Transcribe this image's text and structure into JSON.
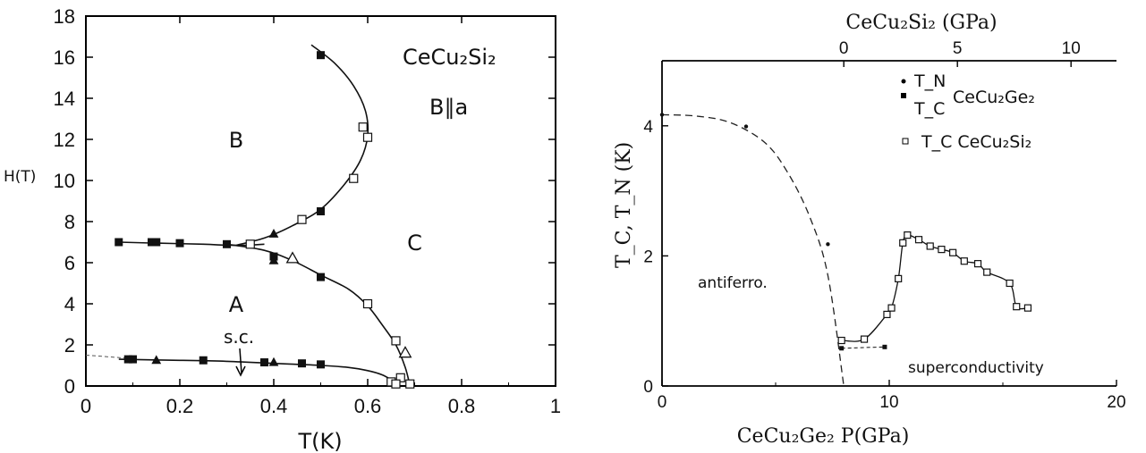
{
  "chart_data": [
    {
      "type": "scatter",
      "title": "CeCu₂Si₂",
      "subtitle": "B∥a",
      "xlabel": "T(K)",
      "ylabel": "H(T)",
      "xlim": [
        0,
        1
      ],
      "ylim": [
        0,
        18
      ],
      "xticks": [
        0,
        0.2,
        0.4,
        0.6,
        0.8,
        1
      ],
      "xtick_labels": [
        "0",
        "0.2",
        "0.4",
        "0.6",
        "0.8",
        "1"
      ],
      "yticks": [
        0,
        2,
        4,
        6,
        8,
        10,
        12,
        14,
        16,
        18
      ],
      "ytick_labels": [
        "0",
        "2",
        "4",
        "6",
        "8",
        "10",
        "12",
        "14",
        "16",
        "18"
      ],
      "region_labels": [
        {
          "text": "A",
          "x": 0.32,
          "y": 4.0
        },
        {
          "text": "B",
          "x": 0.32,
          "y": 12.0
        },
        {
          "text": "C",
          "x": 0.7,
          "y": 7.0
        }
      ],
      "annotation": {
        "text": "s.c.",
        "x": 0.34,
        "y": 2.0
      },
      "curves": [
        {
          "name": "A-B boundary",
          "x": [
            0.07,
            0.15,
            0.25,
            0.3,
            0.34,
            0.38
          ],
          "y": [
            7.0,
            6.95,
            6.9,
            6.85,
            6.85,
            6.9
          ]
        },
        {
          "name": "B-C boundary",
          "x": [
            0.32,
            0.38,
            0.44,
            0.5,
            0.55,
            0.585,
            0.6,
            0.595,
            0.57,
            0.53,
            0.48
          ],
          "y": [
            6.85,
            7.2,
            7.8,
            8.6,
            9.8,
            11.0,
            12.2,
            13.4,
            14.6,
            15.7,
            16.6
          ]
        },
        {
          "name": "A-C boundary",
          "x": [
            0.3,
            0.38,
            0.44,
            0.5,
            0.56,
            0.6,
            0.63,
            0.66,
            0.68,
            0.69
          ],
          "y": [
            6.9,
            6.6,
            6.1,
            5.4,
            4.7,
            3.9,
            3.0,
            2.0,
            0.9,
            0.0
          ]
        },
        {
          "name": "superconducting boundary",
          "x": [
            0.07,
            0.2,
            0.3,
            0.4,
            0.5,
            0.56,
            0.6,
            0.63,
            0.65,
            0.66
          ],
          "y": [
            1.3,
            1.25,
            1.2,
            1.1,
            1.0,
            0.9,
            0.75,
            0.55,
            0.3,
            0.1
          ]
        }
      ],
      "dashed_extension": {
        "x": [
          0.0,
          0.09
        ],
        "y": [
          1.5,
          1.35
        ]
      },
      "series": [
        {
          "marker": "filled-square",
          "x": [
            0.07,
            0.14,
            0.15,
            0.2,
            0.3,
            0.4,
            0.5,
            0.5,
            0.5,
            0.09,
            0.1,
            0.25,
            0.38,
            0.46,
            0.5
          ],
          "y": [
            7.0,
            7.0,
            7.0,
            6.95,
            6.9,
            6.3,
            5.3,
            8.5,
            16.1,
            1.3,
            1.3,
            1.25,
            1.15,
            1.1,
            1.05
          ]
        },
        {
          "marker": "filled-triangle",
          "x": [
            0.4,
            0.4,
            0.15,
            0.4
          ],
          "y": [
            7.4,
            6.1,
            1.25,
            1.15
          ]
        },
        {
          "marker": "open-triangle",
          "x": [
            0.44,
            0.68
          ],
          "y": [
            6.2,
            1.6
          ]
        },
        {
          "marker": "open-square",
          "x": [
            0.35,
            0.46,
            0.57,
            0.59,
            0.6,
            0.6,
            0.66,
            0.65,
            0.67,
            0.69,
            0.66
          ],
          "y": [
            6.9,
            8.1,
            10.1,
            12.6,
            12.1,
            4.0,
            2.2,
            0.2,
            0.4,
            0.1,
            0.1
          ]
        }
      ]
    },
    {
      "type": "line",
      "xlabel": "CeCu₂Ge₂ P(GPa)",
      "ylabel": "T_C, T_N (K)",
      "x2label": "CeCu₂Si₂ (GPa)",
      "xlim": [
        0,
        20
      ],
      "ylim": [
        0,
        5
      ],
      "xticks": [
        0,
        10,
        20
      ],
      "xtick_labels": [
        "0",
        "10",
        "20"
      ],
      "yticks": [
        0,
        2,
        4
      ],
      "ytick_labels": [
        "0",
        "2",
        "4"
      ],
      "x2ticks_at_primary": [
        8,
        13,
        18
      ],
      "x2tick_labels": [
        "0",
        "5",
        "10"
      ],
      "legend": {
        "placement": "top-right",
        "entries": [
          {
            "symbol": "•",
            "text": "T_N"
          },
          {
            "symbol": "▪",
            "text": "T_C"
          },
          {
            "text": "CeCu₂Ge₂"
          },
          {
            "symbol": "□",
            "text": "T_C  CeCu₂Si₂"
          }
        ]
      },
      "region_labels": [
        {
          "text": "antiferro.",
          "x": 2.1,
          "y": 1.85
        },
        {
          "text": "superconductivity",
          "x": 13.5,
          "y": 0.35
        }
      ],
      "series": [
        {
          "marker": "dot",
          "kind": "T_N CeCu2Ge2",
          "x": [
            0.0,
            3.7,
            7.3
          ],
          "y": [
            4.17,
            3.99,
            2.18
          ]
        },
        {
          "marker": "filled-square",
          "kind": "T_C CeCu2Ge2",
          "x": [
            7.9,
            9.8
          ],
          "y": [
            0.58,
            0.6
          ]
        },
        {
          "marker": "open-square",
          "kind": "T_C CeCu2Si2",
          "x": [
            7.9,
            8.9,
            9.9,
            10.1,
            10.4,
            10.6,
            10.8,
            11.3,
            11.8,
            12.3,
            12.8,
            13.3,
            13.9,
            14.3,
            15.3,
            15.6,
            16.1
          ],
          "y": [
            0.7,
            0.72,
            1.1,
            1.2,
            1.65,
            2.2,
            2.32,
            2.25,
            2.15,
            2.1,
            2.05,
            1.92,
            1.88,
            1.75,
            1.58,
            1.22,
            1.2
          ]
        }
      ],
      "dashed_curve": {
        "x": [
          0,
          1.5,
          3,
          4.5,
          5.5,
          6.5,
          7.3,
          8.0
        ],
        "y": [
          4.17,
          4.15,
          4.05,
          3.75,
          3.3,
          2.6,
          1.7,
          0.0
        ]
      }
    }
  ]
}
